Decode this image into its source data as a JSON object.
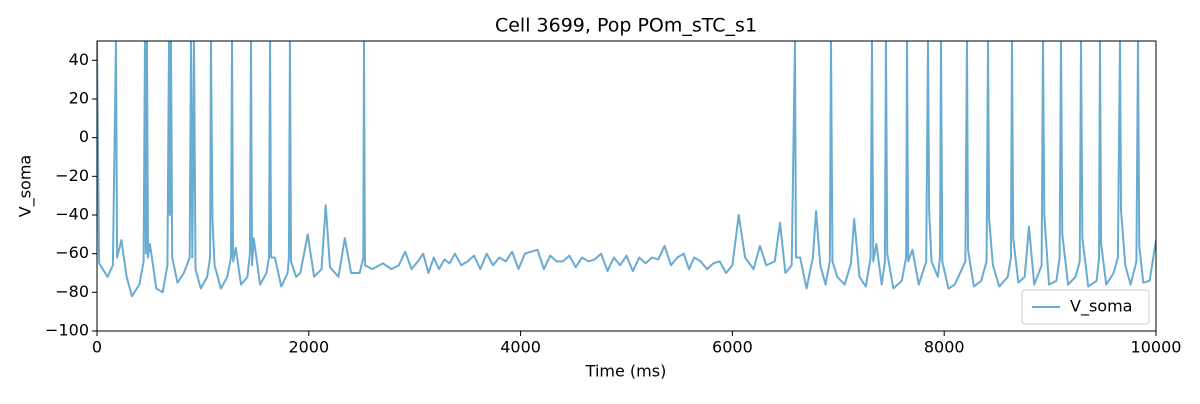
{
  "chart_data": {
    "type": "line",
    "title": "Cell 3699, Pop POm_sTC_s1",
    "xlabel": "Time (ms)",
    "ylabel": "V_soma",
    "xlim": [
      0,
      10000
    ],
    "ylim": [
      -100,
      50
    ],
    "xticks": [
      0,
      2000,
      4000,
      6000,
      8000,
      10000
    ],
    "yticks": [
      {
        "value": -100,
        "label": "−100"
      },
      {
        "value": -80,
        "label": "−80"
      },
      {
        "value": -60,
        "label": "−60"
      },
      {
        "value": -40,
        "label": "−40"
      },
      {
        "value": -20,
        "label": "−20"
      },
      0,
      20,
      40
    ],
    "legend": "lower right",
    "grid": false,
    "x": [
      0,
      20,
      100,
      150,
      179,
      190,
      230,
      280,
      330,
      400,
      440,
      453,
      462,
      472,
      482,
      500,
      560,
      620,
      665,
      680,
      688,
      699,
      710,
      760,
      820,
      875,
      888,
      900,
      916,
      930,
      980,
      1040,
      1068,
      1076,
      1090,
      1110,
      1170,
      1230,
      1265,
      1275,
      1285,
      1310,
      1360,
      1420,
      1444,
      1454,
      1464,
      1480,
      1540,
      1600,
      1624,
      1634,
      1644,
      1680,
      1740,
      1800,
      1812,
      1822,
      1832,
      1880,
      1920,
      1990,
      2050,
      2120,
      2160,
      2200,
      2280,
      2340,
      2400,
      2480,
      2515,
      2521,
      2530,
      2600,
      2700,
      2780,
      2850,
      2910,
      2970,
      3030,
      3080,
      3130,
      3180,
      3230,
      3280,
      3330,
      3380,
      3440,
      3500,
      3560,
      3620,
      3680,
      3740,
      3800,
      3860,
      3920,
      3980,
      4040,
      4100,
      4160,
      4220,
      4280,
      4340,
      4400,
      4460,
      4520,
      4580,
      4640,
      4700,
      4760,
      4820,
      4880,
      4940,
      5000,
      5060,
      5120,
      5180,
      5240,
      5300,
      5360,
      5420,
      5480,
      5540,
      5590,
      5640,
      5700,
      5760,
      5820,
      5880,
      5940,
      6000,
      6060,
      6120,
      6200,
      6260,
      6320,
      6400,
      6450,
      6500,
      6560,
      6591,
      6600,
      6640,
      6700,
      6760,
      6790,
      6830,
      6880,
      6920,
      6931,
      6945,
      6990,
      7060,
      7120,
      7150,
      7200,
      7260,
      7305,
      7318,
      7330,
      7360,
      7410,
      7440,
      7450,
      7462,
      7520,
      7600,
      7640,
      7649,
      7660,
      7700,
      7760,
      7830,
      7847,
      7858,
      7880,
      7940,
      7960,
      7970,
      7982,
      8040,
      8100,
      8200,
      8215,
      8225,
      8280,
      8350,
      8400,
      8414,
      8424,
      8460,
      8520,
      8600,
      8630,
      8640,
      8652,
      8700,
      8760,
      8800,
      8850,
      8920,
      8933,
      8945,
      8990,
      9060,
      9090,
      9103,
      9115,
      9170,
      9240,
      9280,
      9292,
      9305,
      9360,
      9440,
      9462,
      9471,
      9482,
      9530,
      9600,
      9640,
      9660,
      9670,
      9710,
      9760,
      9815,
      9830,
      9842,
      9880,
      9940,
      10000
    ],
    "series": [
      {
        "name": "V_soma",
        "color": "#6aabd2",
        "values": [
          50,
          -65,
          -72,
          -66,
          50,
          -62,
          -53,
          -72,
          -82,
          -76,
          -64,
          50,
          -60,
          50,
          -62,
          -55,
          -78,
          -80,
          -66,
          50,
          -40,
          50,
          -62,
          -75,
          -70,
          -62,
          50,
          -62,
          50,
          -68,
          -78,
          -72,
          -62,
          50,
          -42,
          -66,
          -78,
          -72,
          -62,
          50,
          -64,
          -57,
          -76,
          -72,
          -60,
          50,
          -66,
          -52,
          -76,
          -70,
          -62,
          50,
          -62,
          -62,
          -77,
          -70,
          -62,
          50,
          -64,
          -72,
          -70,
          -50,
          -72,
          -68,
          -35,
          -67,
          -72,
          -52,
          -70,
          -70,
          -62,
          50,
          -66,
          -68,
          -65,
          -68,
          -66,
          -59,
          -68,
          -64,
          -60,
          -70,
          -62,
          -68,
          -63,
          -65,
          -60,
          -66,
          -64,
          -61,
          -68,
          -60,
          -66,
          -62,
          -64,
          -59,
          -68,
          -60,
          -59,
          -58,
          -68,
          -61,
          -64,
          -64,
          -61,
          -67,
          -62,
          -64,
          -63,
          -60,
          -69,
          -62,
          -66,
          -61,
          -69,
          -62,
          -65,
          -62,
          -63,
          -56,
          -66,
          -62,
          -60,
          -68,
          -62,
          -64,
          -68,
          -65,
          -64,
          -70,
          -66,
          -40,
          -62,
          -68,
          -56,
          -66,
          -64,
          -44,
          -70,
          -66,
          50,
          -62,
          -62,
          -78,
          -62,
          -38,
          -66,
          -76,
          -64,
          50,
          -64,
          -72,
          -76,
          -65,
          -42,
          -72,
          -77,
          -62,
          50,
          -64,
          -55,
          -76,
          -64,
          50,
          -60,
          -78,
          -74,
          -62,
          50,
          -64,
          -58,
          -76,
          -64,
          50,
          -38,
          -64,
          -72,
          -62,
          50,
          -64,
          -78,
          -76,
          -64,
          50,
          -58,
          -77,
          -74,
          -64,
          50,
          -42,
          -66,
          -77,
          -72,
          -62,
          50,
          -52,
          -75,
          -72,
          -46,
          -76,
          -66,
          50,
          -40,
          -76,
          -74,
          -62,
          50,
          -50,
          -76,
          -72,
          -64,
          50,
          -52,
          -77,
          -74,
          -62,
          50,
          -55,
          -76,
          -70,
          -62,
          50,
          -38,
          -66,
          -76,
          -64,
          50,
          -56,
          -75,
          -74,
          -53
        ]
      }
    ]
  }
}
